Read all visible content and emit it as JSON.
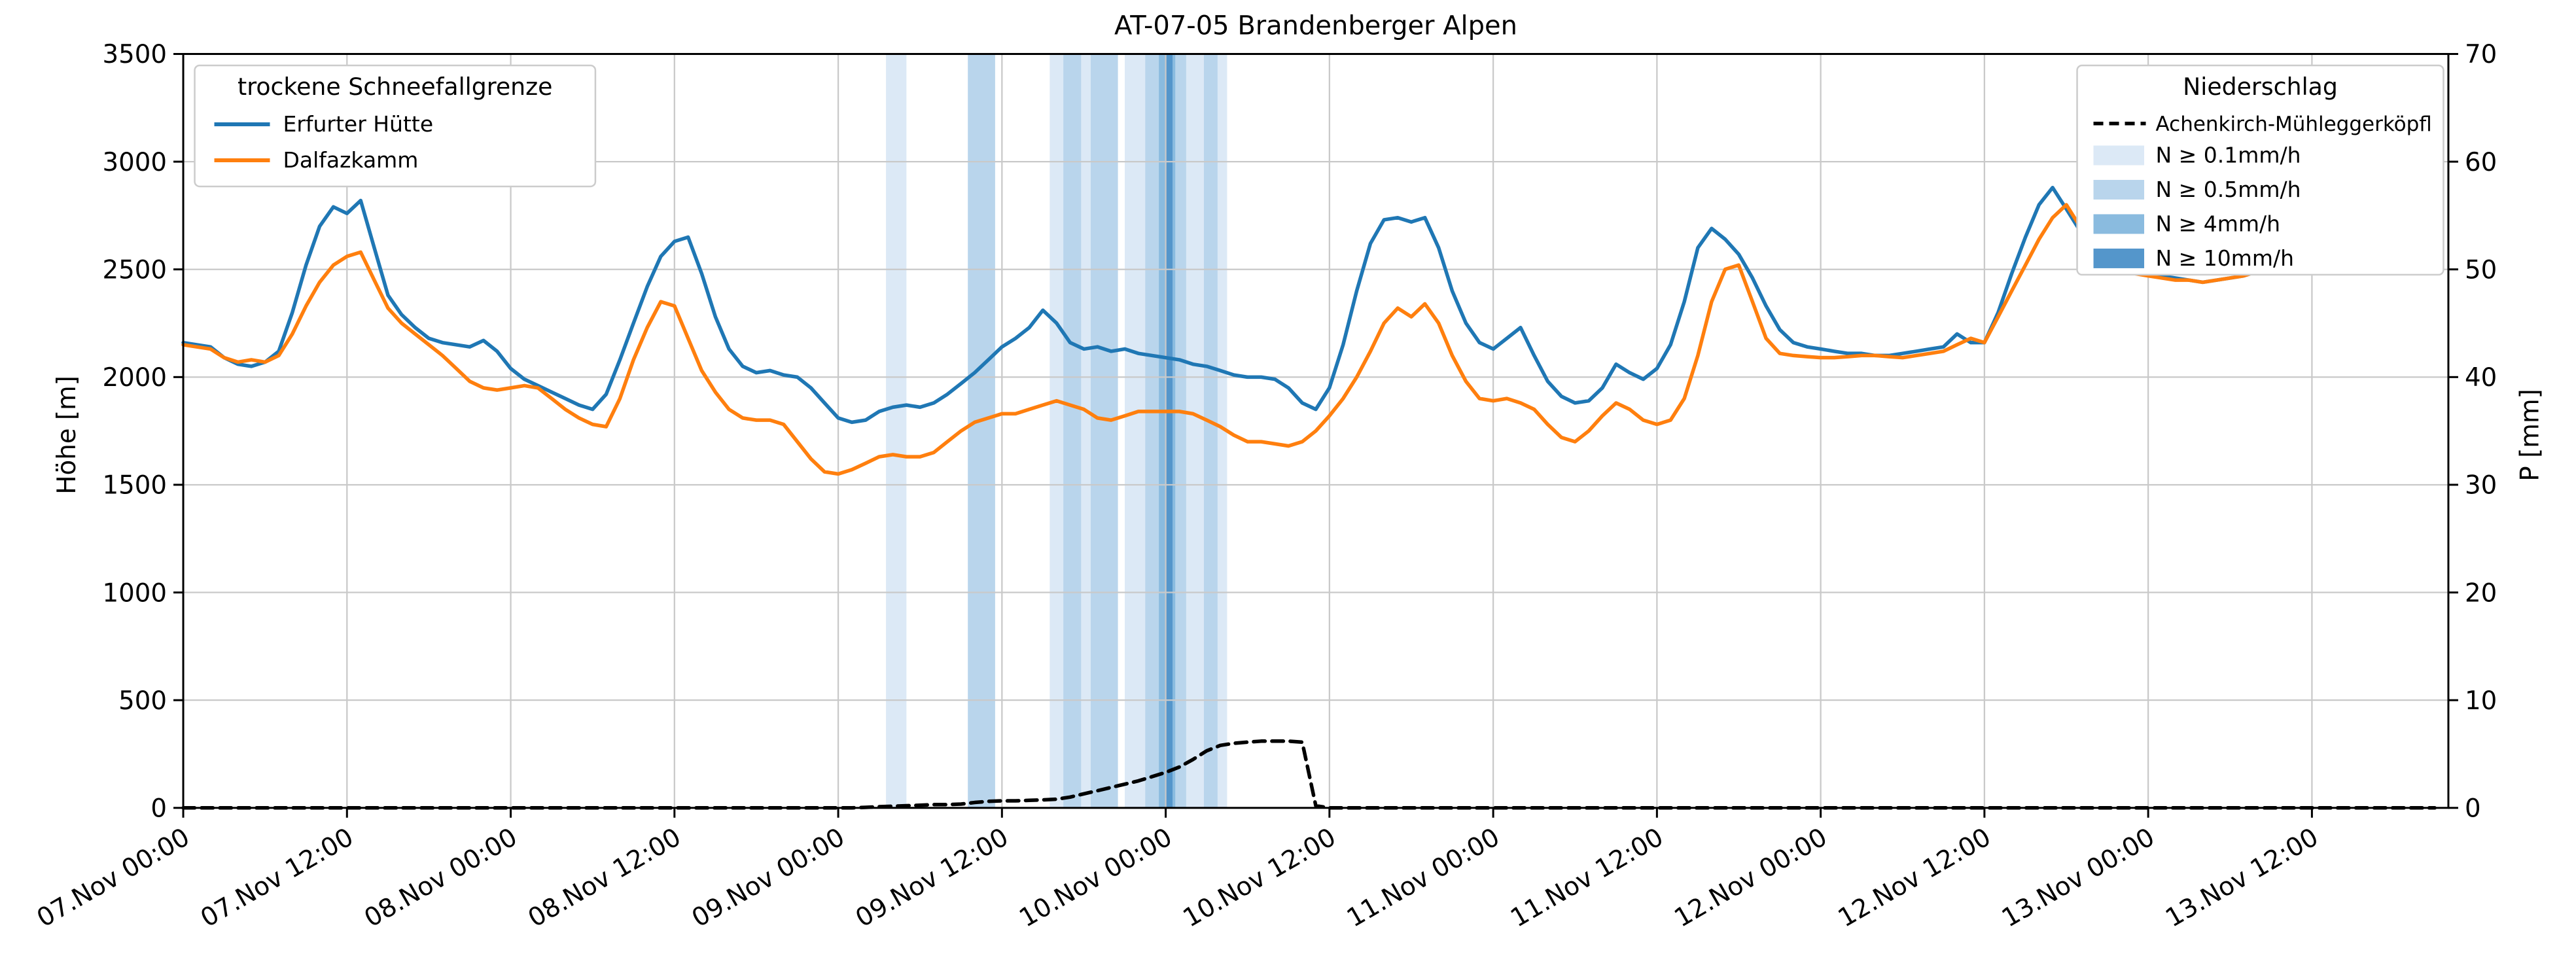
{
  "title": "AT-07-05 Brandenberger Alpen",
  "legend_snowline": {
    "title": "trockene Schneefallgrenze",
    "entries": [
      {
        "label": "Erfurter Hütte",
        "color": "#1f77b4"
      },
      {
        "label": "Dalfazkamm",
        "color": "#ff7f0e"
      }
    ]
  },
  "legend_precip": {
    "title": "Niederschlag",
    "line_entry": {
      "label": "Achenkirch-Mühleggerköpfl",
      "color": "#000000",
      "style": "dashed"
    }
  },
  "chart_data": {
    "type": "line",
    "x_unit": "hours since 07.Nov 00:00",
    "x_range_hours": [
      0,
      166
    ],
    "x_tick_hours": [
      0,
      12,
      24,
      36,
      48,
      60,
      72,
      84,
      96,
      108,
      120,
      132,
      144,
      156
    ],
    "x_tick_labels": [
      "07.Nov 00:00",
      "07.Nov 12:00",
      "08.Nov 00:00",
      "08.Nov 12:00",
      "09.Nov 00:00",
      "09.Nov 12:00",
      "10.Nov 00:00",
      "10.Nov 12:00",
      "11.Nov 00:00",
      "11.Nov 12:00",
      "12.Nov 00:00",
      "12.Nov 12:00",
      "13.Nov 00:00",
      "13.Nov 12:00"
    ],
    "y_left": {
      "label": "Höhe [m]",
      "range": [
        0,
        3500
      ],
      "ticks": [
        0,
        500,
        1000,
        1500,
        2000,
        2500,
        3000,
        3500
      ]
    },
    "y_right": {
      "label": "P [mm]",
      "range": [
        0,
        70
      ],
      "ticks": [
        0,
        10,
        20,
        30,
        40,
        50,
        60,
        70
      ]
    },
    "grid": true,
    "forecast_start_index": 152,
    "forecast_opacity": 0.35,
    "series": [
      {
        "name": "Erfurter Hütte",
        "axis": "left",
        "color": "#1f77b4",
        "style": "solid",
        "values": [
          2160,
          2150,
          2140,
          2090,
          2060,
          2050,
          2070,
          2120,
          2300,
          2520,
          2700,
          2790,
          2760,
          2820,
          2600,
          2380,
          2290,
          2230,
          2180,
          2160,
          2150,
          2140,
          2170,
          2120,
          2040,
          1990,
          1960,
          1930,
          1900,
          1870,
          1850,
          1920,
          2080,
          2250,
          2420,
          2560,
          2630,
          2650,
          2480,
          2280,
          2130,
          2050,
          2020,
          2030,
          2010,
          2000,
          1950,
          1880,
          1810,
          1790,
          1800,
          1840,
          1860,
          1870,
          1860,
          1880,
          1920,
          1970,
          2020,
          2080,
          2140,
          2180,
          2230,
          2310,
          2250,
          2160,
          2130,
          2140,
          2120,
          2130,
          2110,
          2100,
          2090,
          2080,
          2060,
          2050,
          2030,
          2010,
          2000,
          2000,
          1990,
          1950,
          1880,
          1850,
          1950,
          2150,
          2400,
          2620,
          2730,
          2740,
          2720,
          2740,
          2600,
          2400,
          2250,
          2160,
          2130,
          2180,
          2230,
          2100,
          1980,
          1910,
          1880,
          1890,
          1950,
          2060,
          2020,
          1990,
          2040,
          2150,
          2350,
          2600,
          2690,
          2640,
          2570,
          2460,
          2330,
          2220,
          2160,
          2140,
          2130,
          2120,
          2110,
          2110,
          2100,
          2100,
          2110,
          2120,
          2130,
          2140,
          2200,
          2160,
          2160,
          2300,
          2480,
          2650,
          2800,
          2880,
          2780,
          2680,
          2600,
          2550,
          2510,
          2490,
          2480,
          2470,
          2460,
          2450,
          2440,
          2450,
          2460,
          2470,
          2490,
          2550,
          2700,
          2900,
          3100,
          3250,
          3350,
          3420,
          3380,
          3250,
          3080,
          2920,
          2780,
          2680
        ]
      },
      {
        "name": "Dalfazkamm",
        "axis": "left",
        "color": "#ff7f0e",
        "style": "solid",
        "values": [
          2150,
          2140,
          2130,
          2090,
          2070,
          2080,
          2070,
          2100,
          2200,
          2330,
          2440,
          2520,
          2560,
          2580,
          2450,
          2320,
          2250,
          2200,
          2150,
          2100,
          2040,
          1980,
          1950,
          1940,
          1950,
          1960,
          1950,
          1900,
          1850,
          1810,
          1780,
          1770,
          1900,
          2080,
          2230,
          2350,
          2330,
          2180,
          2030,
          1930,
          1850,
          1810,
          1800,
          1800,
          1780,
          1700,
          1620,
          1560,
          1550,
          1570,
          1600,
          1630,
          1640,
          1630,
          1630,
          1650,
          1700,
          1750,
          1790,
          1810,
          1830,
          1830,
          1850,
          1870,
          1890,
          1870,
          1850,
          1810,
          1800,
          1820,
          1840,
          1840,
          1840,
          1840,
          1830,
          1800,
          1770,
          1730,
          1700,
          1700,
          1690,
          1680,
          1700,
          1750,
          1820,
          1900,
          2000,
          2120,
          2250,
          2320,
          2280,
          2340,
          2250,
          2100,
          1980,
          1900,
          1890,
          1900,
          1880,
          1850,
          1780,
          1720,
          1700,
          1750,
          1820,
          1880,
          1850,
          1800,
          1780,
          1800,
          1900,
          2100,
          2350,
          2500,
          2520,
          2350,
          2180,
          2110,
          2100,
          2095,
          2090,
          2090,
          2095,
          2100,
          2100,
          2095,
          2090,
          2100,
          2110,
          2120,
          2150,
          2180,
          2160,
          2280,
          2400,
          2520,
          2640,
          2740,
          2800,
          2700,
          2620,
          2560,
          2510,
          2480,
          2470,
          2460,
          2450,
          2450,
          2440,
          2450,
          2460,
          2470,
          2490,
          2560,
          2680,
          2820,
          2950,
          3050,
          3020,
          2940,
          2860,
          2780,
          2720,
          2670,
          2630,
          2600
        ]
      },
      {
        "name": "Achenkirch-Mühleggerköpfl",
        "axis": "right",
        "color": "#000000",
        "style": "dashed",
        "values": [
          0,
          0,
          0,
          0,
          0,
          0,
          0,
          0,
          0,
          0,
          0,
          0,
          0,
          0,
          0,
          0,
          0,
          0,
          0,
          0,
          0,
          0,
          0,
          0,
          0,
          0,
          0,
          0,
          0,
          0,
          0,
          0,
          0,
          0,
          0,
          0,
          0,
          0,
          0,
          0,
          0,
          0,
          0,
          0,
          0,
          0,
          0,
          0,
          0,
          0,
          0.05,
          0.1,
          0.15,
          0.2,
          0.25,
          0.3,
          0.3,
          0.35,
          0.5,
          0.6,
          0.65,
          0.65,
          0.7,
          0.75,
          0.8,
          1.0,
          1.3,
          1.6,
          1.9,
          2.2,
          2.5,
          2.9,
          3.3,
          3.8,
          4.5,
          5.3,
          5.8,
          6.0,
          6.1,
          6.2,
          6.2,
          6.2,
          6.1,
          0.2,
          0,
          0,
          0,
          0,
          0,
          0,
          0,
          0,
          0,
          0,
          0,
          0,
          0,
          0,
          0,
          0,
          0,
          0,
          0,
          0,
          0,
          0,
          0,
          0,
          0,
          0,
          0,
          0,
          0,
          0,
          0,
          0,
          0,
          0,
          0,
          0,
          0,
          0,
          0,
          0,
          0,
          0,
          0,
          0,
          0,
          0,
          0,
          0,
          0,
          0,
          0,
          0,
          0,
          0,
          0,
          0,
          0,
          0,
          0,
          0,
          0,
          0,
          0,
          0,
          0,
          0,
          0,
          0,
          0,
          0,
          0,
          0,
          0,
          0,
          0,
          0,
          0,
          0,
          0,
          0,
          0,
          0
        ]
      }
    ],
    "precip_bands": {
      "levels": [
        {
          "label": "N ≥ 0.1mm/h",
          "color": "#dce9f6"
        },
        {
          "label": "N ≥ 0.5mm/h",
          "color": "#b9d5ec"
        },
        {
          "label": "N ≥ 4mm/h",
          "color": "#8abbdf"
        },
        {
          "label": "N ≥ 10mm/h",
          "color": "#5496cb"
        }
      ],
      "bands": [
        {
          "start": 51.5,
          "end": 53.0,
          "level": 0
        },
        {
          "start": 57.5,
          "end": 59.5,
          "level": 1
        },
        {
          "start": 63.5,
          "end": 66.5,
          "level": 0
        },
        {
          "start": 64.5,
          "end": 65.8,
          "level": 1
        },
        {
          "start": 66.5,
          "end": 68.5,
          "level": 1
        },
        {
          "start": 69.0,
          "end": 76.5,
          "level": 0
        },
        {
          "start": 70.5,
          "end": 73.5,
          "level": 1
        },
        {
          "start": 71.5,
          "end": 72.7,
          "level": 2
        },
        {
          "start": 72.0,
          "end": 72.5,
          "level": 3
        },
        {
          "start": 74.8,
          "end": 75.8,
          "level": 1
        }
      ]
    }
  }
}
